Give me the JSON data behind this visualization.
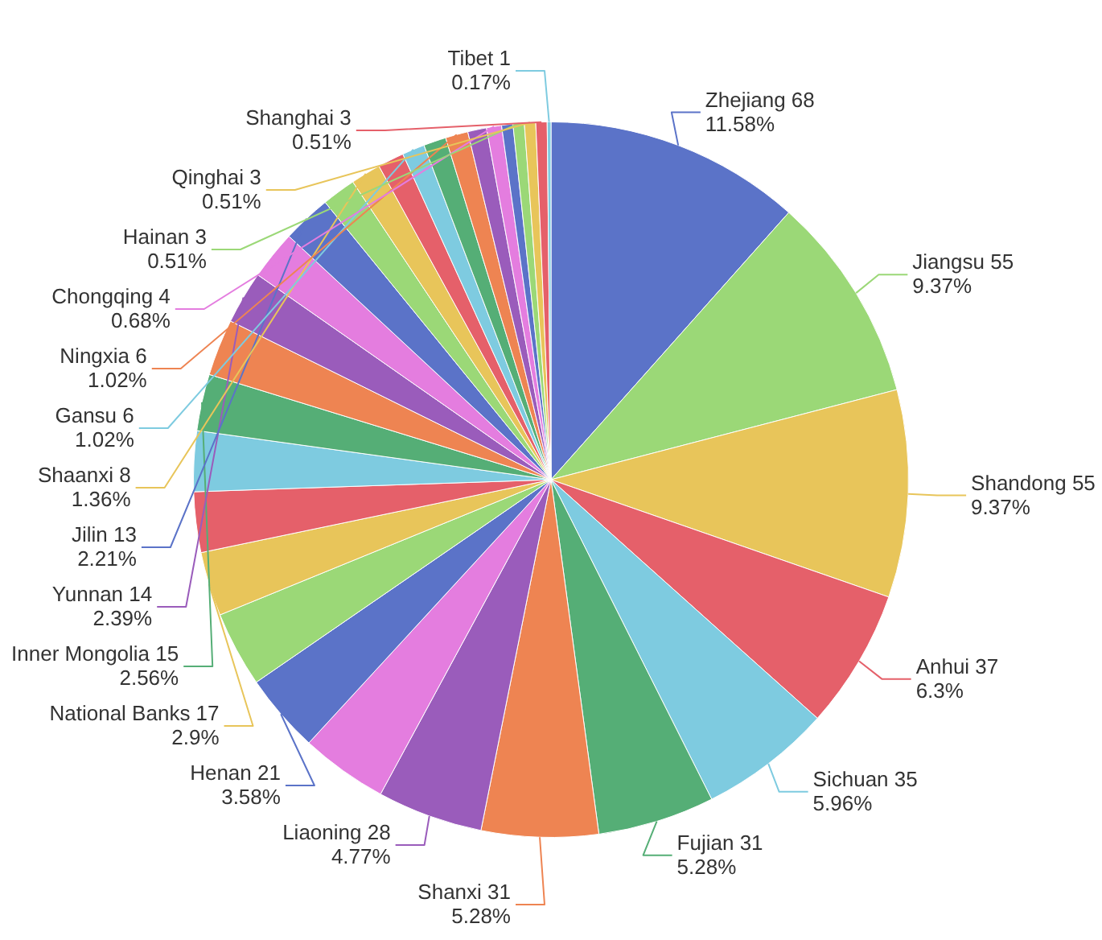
{
  "chart_data": {
    "type": "pie",
    "categories": [
      "Zhejiang 68",
      "Jiangsu 55",
      "Shandong 55",
      "Anhui 37",
      "Sichuan 35",
      "Fujian 31",
      "Shanxi 31",
      "Liaoning 28",
      null,
      "Henan 21",
      null,
      "National Banks 17",
      null,
      null,
      "Inner Mongolia 15",
      null,
      "Yunnan 14",
      null,
      "Jilin 13",
      null,
      "Shaanxi 8",
      null,
      "Gansu 6",
      null,
      "Ningxia 6",
      null,
      "Chongqing 4",
      null,
      "Hainan 3",
      "Qinghai 3",
      "Shanghai 3",
      "Tibet 1"
    ],
    "values": [
      11.58,
      9.37,
      9.37,
      6.3,
      5.96,
      5.28,
      5.28,
      4.77,
      3.93,
      3.58,
      3.41,
      2.9,
      2.73,
      2.73,
      2.56,
      2.56,
      2.39,
      2.21,
      2.21,
      1.53,
      1.36,
      1.19,
      1.02,
      1.02,
      1.02,
      0.85,
      0.68,
      0.51,
      0.51,
      0.51,
      0.51,
      0.17
    ],
    "value_labels": [
      "11.58%",
      "9.37%",
      "9.37%",
      "6.3%",
      "5.96%",
      "5.28%",
      "5.28%",
      "4.77%",
      null,
      "3.58%",
      null,
      "2.9%",
      null,
      null,
      "2.56%",
      null,
      "2.39%",
      null,
      "2.21%",
      null,
      "1.36%",
      null,
      "1.02%",
      null,
      "1.02%",
      null,
      "0.68%",
      null,
      "0.51%",
      "0.51%",
      "0.51%",
      "0.17%"
    ],
    "colors": [
      "#5b73c8",
      "#9bd877",
      "#e8c55a",
      "#e5606a",
      "#7ecbe0",
      "#55ae76",
      "#ee8452",
      "#9a5cbb",
      "#e47ddf",
      "#5b73c8",
      "#9bd877",
      "#e8c55a",
      "#e5606a",
      "#7ecbe0",
      "#55ae76",
      "#ee8452",
      "#9a5cbb",
      "#e47ddf",
      "#5b73c8",
      "#9bd877",
      "#e8c55a",
      "#e5606a",
      "#7ecbe0",
      "#55ae76",
      "#ee8452",
      "#9a5cbb",
      "#e47ddf",
      "#5b73c8",
      "#9bd877",
      "#e8c55a",
      "#e5606a",
      "#7ecbe0"
    ],
    "legend": false
  }
}
